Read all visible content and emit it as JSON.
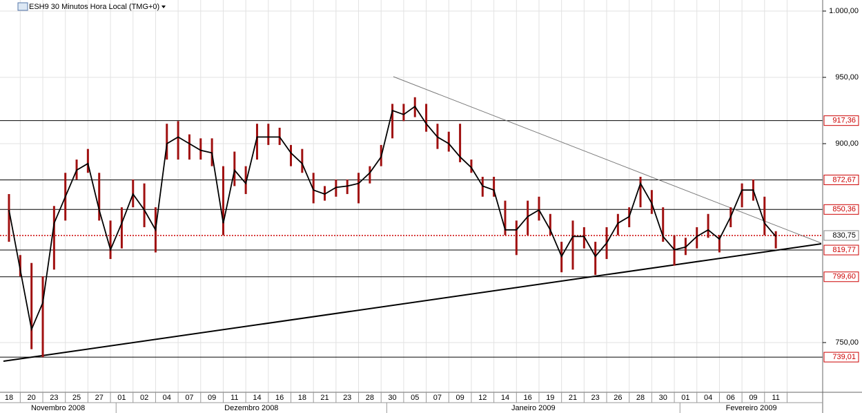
{
  "chart_data": {
    "type": "hlc",
    "title": "ESH9 30 Minutos Hora Local (TMG+0)",
    "categories": [
      "18",
      null,
      "20",
      null,
      "23",
      null,
      "25",
      null,
      "27",
      null,
      "01",
      null,
      "02",
      null,
      "04",
      null,
      "07",
      null,
      "09",
      null,
      "11",
      null,
      "14",
      null,
      "16",
      null,
      "18",
      null,
      "21",
      null,
      "23",
      null,
      "28",
      null,
      "30",
      null,
      "05",
      null,
      "07",
      null,
      "09",
      null,
      "12",
      null,
      "14",
      null,
      "16",
      null,
      "19",
      null,
      "21",
      null,
      "23",
      null,
      "26",
      null,
      "28",
      null,
      "30",
      null,
      "01",
      null,
      "04",
      null,
      "06",
      null,
      "09",
      null,
      "11"
    ],
    "months": [
      "Novembro 2008",
      "Dezembro 2008",
      "Janeiro 2009",
      "Fevereiro 2009"
    ],
    "high": [
      862,
      816,
      810,
      800,
      853,
      878,
      888,
      896,
      878,
      842,
      852,
      873,
      870,
      852,
      915,
      917,
      907,
      904,
      904,
      883,
      894,
      883,
      915,
      915,
      912,
      899,
      896,
      878,
      868,
      873,
      873,
      878,
      883,
      899,
      930,
      930,
      935,
      930,
      915,
      909,
      915,
      888,
      875,
      875,
      857,
      842,
      857,
      860,
      847,
      826,
      842,
      837,
      826,
      837,
      847,
      852,
      875,
      865,
      852,
      831,
      829,
      837,
      847,
      831,
      852,
      870,
      873,
      860,
      834
    ],
    "low": [
      826,
      800,
      745,
      739,
      805,
      842,
      873,
      878,
      842,
      813,
      821,
      852,
      837,
      818,
      888,
      888,
      888,
      888,
      883,
      831,
      868,
      862,
      888,
      899,
      899,
      883,
      878,
      855,
      857,
      860,
      862,
      855,
      870,
      883,
      904,
      917,
      920,
      909,
      896,
      894,
      886,
      878,
      860,
      860,
      831,
      816,
      831,
      842,
      831,
      803,
      805,
      821,
      801,
      813,
      831,
      837,
      852,
      847,
      826,
      808,
      816,
      821,
      829,
      818,
      837,
      852,
      857,
      831,
      821
    ],
    "close": [
      850,
      805,
      760,
      780,
      840,
      860,
      880,
      885,
      850,
      820,
      840,
      862,
      850,
      835,
      900,
      905,
      900,
      895,
      893,
      840,
      880,
      870,
      905,
      905,
      905,
      893,
      885,
      865,
      862,
      867,
      868,
      870,
      878,
      890,
      925,
      922,
      928,
      915,
      905,
      900,
      890,
      882,
      868,
      865,
      835,
      835,
      845,
      850,
      835,
      815,
      830,
      830,
      815,
      825,
      840,
      845,
      870,
      855,
      830,
      820,
      822,
      830,
      835,
      828,
      845,
      865,
      865,
      840,
      830
    ],
    "color": "#000000",
    "range_color": "#a01010",
    "ylim": [
      712.5,
      1008.33
    ],
    "yticks": [
      {
        "value": 1000,
        "label": "1.000,00"
      },
      {
        "value": 950,
        "label": "950,00"
      },
      {
        "value": 900,
        "label": "900,00"
      },
      {
        "value": 750,
        "label": "750,00"
      }
    ],
    "levels": [
      {
        "value": 917.36,
        "label": "917,36"
      },
      {
        "value": 872.67,
        "label": "872,67"
      },
      {
        "value": 850.36,
        "label": "850,36"
      },
      {
        "value": 819.77,
        "label": "819,77"
      },
      {
        "value": 799.6,
        "label": "799,60"
      },
      {
        "value": 739.01,
        "label": "739,01"
      }
    ],
    "last": {
      "value": 830.75,
      "label": "830,75"
    },
    "grid": true
  }
}
